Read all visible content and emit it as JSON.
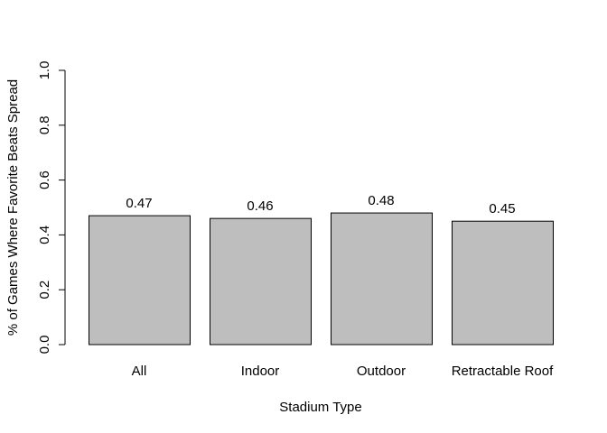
{
  "chart_data": {
    "type": "bar",
    "title": "",
    "xlabel": "Stadium Type",
    "ylabel": "% of Games Where Favorite Beats Spread",
    "categories": [
      "All",
      "Indoor",
      "Outdoor",
      "Retractable Roof"
    ],
    "values": [
      0.47,
      0.46,
      0.48,
      0.45
    ],
    "data_labels": [
      "0.47",
      "0.46",
      "0.48",
      "0.45"
    ],
    "ylim": [
      0,
      1
    ],
    "yticks": [
      0.0,
      0.2,
      0.4,
      0.6,
      0.8,
      1.0
    ],
    "ytick_labels": [
      "0.0",
      "0.2",
      "0.4",
      "0.6",
      "0.8",
      "1.0"
    ],
    "grid": false,
    "legend": "none",
    "colors": {
      "bar_fill": "#bebebe",
      "bar_stroke": "#000000",
      "axis": "#000000",
      "text": "#000000"
    }
  }
}
